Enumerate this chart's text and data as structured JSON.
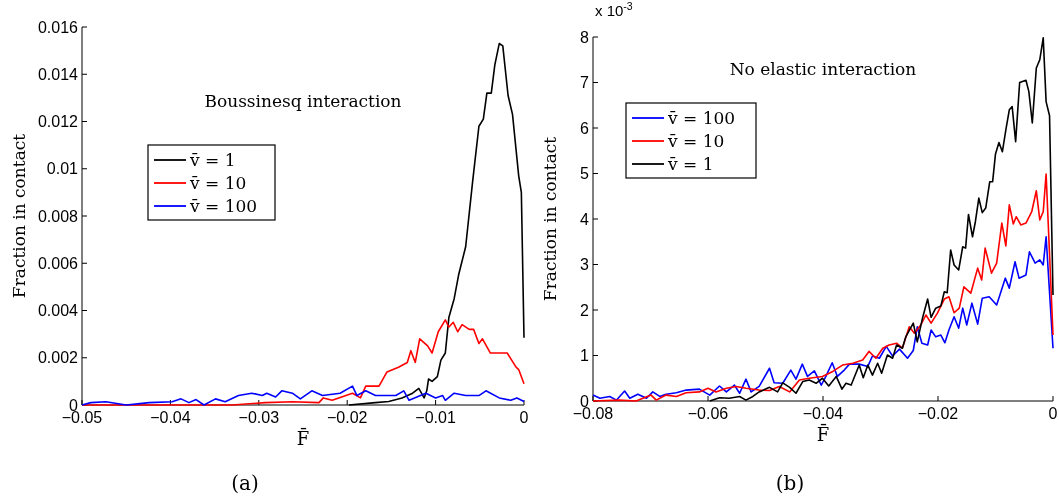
{
  "chart_data": [
    {
      "type": "line",
      "title": "Boussinesq interaction",
      "xlabel": "F̄",
      "ylabel": "Fraction in contact",
      "annotations": [
        "(a)"
      ],
      "xlim": [
        -0.05,
        0
      ],
      "xticks": [
        {
          "value": -0.05,
          "label": "−0.05"
        },
        {
          "value": -0.04,
          "label": "−0.04"
        },
        {
          "value": -0.03,
          "label": "−0.03"
        },
        {
          "value": -0.02,
          "label": "−0.02"
        },
        {
          "value": -0.01,
          "label": "−0.01"
        },
        0
      ],
      "ylim": [
        0,
        0.016
      ],
      "yticks": [
        0,
        0.002,
        0.004,
        0.006,
        0.008,
        0.01,
        0.012,
        0.014,
        0.016
      ],
      "grid": false,
      "legend": "center",
      "marker": "none",
      "line_style": "solid",
      "series": [
        {
          "name": "v̄ = 1",
          "color": "#000000",
          "x": [
            -0.0198,
            -0.0168,
            -0.0153,
            -0.0138,
            -0.0126,
            -0.0119,
            -0.0113,
            -0.011,
            -0.0108,
            -0.0104,
            -0.0098,
            -0.0094,
            -0.0089,
            -0.0085,
            -0.0079,
            -0.0074,
            -0.0066,
            -0.0058,
            -0.0051,
            -0.0046,
            -0.0042,
            -0.0037,
            -0.0033,
            -0.0028,
            -0.0024,
            -0.0018,
            -0.0013,
            -0.0006,
            -0.0003,
            0
          ],
          "values": [
            0,
            0.0001,
            0.00015,
            0.0003,
            0.0005,
            0.0007,
            0.0003,
            0.0006,
            0.0011,
            0.001,
            0.0012,
            0.0019,
            0.0022,
            0.0037,
            0.0045,
            0.0055,
            0.0067,
            0.0095,
            0.0118,
            0.0121,
            0.0132,
            0.0132,
            0.0144,
            0.0153,
            0.0152,
            0.0131,
            0.0123,
            0.0097,
            0.009,
            0.00285
          ]
        },
        {
          "name": "v̄ = 10",
          "color": "#ff0000",
          "x": [
            -0.05,
            -0.033,
            -0.0293,
            -0.0262,
            -0.0232,
            -0.0227,
            -0.0217,
            -0.0194,
            -0.0185,
            -0.0179,
            -0.0164,
            -0.0155,
            -0.0142,
            -0.0132,
            -0.0128,
            -0.0123,
            -0.0118,
            -0.0109,
            -0.0104,
            -0.0097,
            -0.0089,
            -0.0085,
            -0.008,
            -0.0075,
            -0.007,
            -0.0062,
            -0.0057,
            -0.0051,
            -0.0047,
            -0.0038,
            -0.0019,
            -0.0009,
            -0.0006,
            0
          ],
          "values": [
            0,
            0,
            0.0001,
            0.00014,
            0.0001,
            0.0003,
            0.0002,
            0.0005,
            0.0003,
            0.0008,
            0.0008,
            0.0014,
            0.0016,
            0.0018,
            0.0023,
            0.0018,
            0.0028,
            0.0025,
            0.0022,
            0.0031,
            0.0036,
            0.0033,
            0.0035,
            0.0031,
            0.0034,
            0.0032,
            0.0032,
            0.0026,
            0.0028,
            0.0022,
            0.0022,
            0.0016,
            0.0015,
            0.0009
          ]
        },
        {
          "name": "v̄ = 100",
          "color": "#0000ff",
          "x": [
            -0.05,
            -0.049,
            -0.0473,
            -0.045,
            -0.0424,
            -0.0398,
            -0.0388,
            -0.0379,
            -0.0371,
            -0.0362,
            -0.0349,
            -0.0338,
            -0.0323,
            -0.0308,
            -0.0296,
            -0.0291,
            -0.0281,
            -0.0274,
            -0.0262,
            -0.0253,
            -0.024,
            -0.0228,
            -0.0208,
            -0.0194,
            -0.0189,
            -0.0179,
            -0.0168,
            -0.0145,
            -0.0136,
            -0.013,
            -0.0111,
            -0.01,
            -0.0092,
            -0.0089,
            -0.0079,
            -0.0066,
            -0.0051,
            -0.0043,
            -0.0028,
            -0.0015,
            -0.0008,
            0
          ],
          "values": [
            0,
            0.0001,
            0.00014,
            0,
            0.0001,
            0.00014,
            0.00026,
            0.0001,
            0.00023,
            0,
            0.00026,
            0.00014,
            0.0004,
            0.0005,
            0.0004,
            0.0005,
            0.00034,
            0.0006,
            0.0005,
            0.00026,
            0.0006,
            0.0004,
            0.0005,
            0.0008,
            0.0004,
            0.0006,
            0.0004,
            0.0004,
            0.0006,
            0.0002,
            0.0005,
            0.0003,
            0.0004,
            0.0002,
            0.0005,
            0.0004,
            0.0004,
            0.0006,
            0.0003,
            0.0002,
            0.0003,
            0.00015
          ]
        }
      ]
    },
    {
      "type": "line",
      "title": "No elastic interaction",
      "xlabel": "F̄",
      "ylabel": "Fraction in contact",
      "annotations": [
        "x 10$^{-3}$",
        "(b)"
      ],
      "xlim": [
        -0.08,
        0
      ],
      "xticks": [
        {
          "value": -0.08,
          "label": "−0.08"
        },
        {
          "value": -0.06,
          "label": "−0.06"
        },
        {
          "value": -0.04,
          "label": "−0.04"
        },
        {
          "value": -0.02,
          "label": "−0.02"
        },
        0
      ],
      "ylim": [
        0,
        8
      ],
      "yticks": [
        0,
        1,
        2,
        3,
        4,
        5,
        6,
        7,
        8
      ],
      "grid": false,
      "legend": "top left",
      "marker": "none",
      "line_style": "solid",
      "series": [
        {
          "name": "v̄ = 100",
          "color": "#0000ff",
          "x": [
            -0.08,
            -0.0788,
            -0.0771,
            -0.0759,
            -0.0745,
            -0.0736,
            -0.0722,
            -0.0707,
            -0.0696,
            -0.0684,
            -0.0673,
            -0.0655,
            -0.0638,
            -0.0615,
            -0.0597,
            -0.058,
            -0.0568,
            -0.0554,
            -0.0545,
            -0.0534,
            -0.0525,
            -0.0511,
            -0.0493,
            -0.0485,
            -0.047,
            -0.0456,
            -0.0447,
            -0.0436,
            -0.0427,
            -0.0415,
            -0.0403,
            -0.0395,
            -0.0384,
            -0.0375,
            -0.0363,
            -0.0354,
            -0.0337,
            -0.0322,
            -0.0314,
            -0.0302,
            -0.029,
            -0.0279,
            -0.0267,
            -0.0253,
            -0.0243,
            -0.0236,
            -0.0228,
            -0.0218,
            -0.0212,
            -0.0204,
            -0.0195,
            -0.0188,
            -0.0181,
            -0.0172,
            -0.0164,
            -0.0157,
            -0.015,
            -0.0141,
            -0.0131,
            -0.0123,
            -0.0111,
            -0.0098,
            -0.0083,
            -0.0076,
            -0.0066,
            -0.0059,
            -0.0047,
            -0.0041,
            -0.0031,
            -0.0023,
            -0.0017,
            -0.0012,
            0
          ],
          "values": [
            0.13,
            0.06,
            0.1,
            0.02,
            0.22,
            0.06,
            0.15,
            0.06,
            0.2,
            0.1,
            0.15,
            0.18,
            0.24,
            0.26,
            0.13,
            0.33,
            0.2,
            0.35,
            0.17,
            0.48,
            0.2,
            0.32,
            0.72,
            0.4,
            0.39,
            0.68,
            0.48,
            0.81,
            0.54,
            0.66,
            0.35,
            0.54,
            0.84,
            0.54,
            0.68,
            0.81,
            0.81,
            0.76,
            0.99,
            0.94,
            1.2,
            0.99,
            1.14,
            0.94,
            1.11,
            1.63,
            1.27,
            1.23,
            1.56,
            1.41,
            1.45,
            1.28,
            1.56,
            1.85,
            1.6,
            2.04,
            1.67,
            2.15,
            1.69,
            2.26,
            2.29,
            2.11,
            2.7,
            2.48,
            3.06,
            2.7,
            2.77,
            3.28,
            3.03,
            3.1,
            2.99,
            3.61,
            1.16
          ]
        },
        {
          "name": "v̄ = 10",
          "color": "#ff0000",
          "x": [
            -0.08,
            -0.0755,
            -0.0725,
            -0.0699,
            -0.069,
            -0.0673,
            -0.0655,
            -0.0638,
            -0.0615,
            -0.06,
            -0.0586,
            -0.0568,
            -0.0551,
            -0.0534,
            -0.0511,
            -0.0493,
            -0.0476,
            -0.0458,
            -0.0441,
            -0.0424,
            -0.0401,
            -0.0383,
            -0.0366,
            -0.0348,
            -0.0331,
            -0.032,
            -0.0308,
            -0.0296,
            -0.0285,
            -0.0272,
            -0.0262,
            -0.025,
            -0.0241,
            -0.023,
            -0.0221,
            -0.0212,
            -0.0201,
            -0.0189,
            -0.0181,
            -0.0172,
            -0.0163,
            -0.0155,
            -0.0143,
            -0.0131,
            -0.0124,
            -0.0118,
            -0.0107,
            -0.0098,
            -0.0089,
            -0.0082,
            -0.0076,
            -0.0069,
            -0.0064,
            -0.0056,
            -0.0047,
            -0.0037,
            -0.0029,
            -0.0023,
            -0.0017,
            -0.0012,
            0
          ],
          "values": [
            0,
            0.02,
            0,
            0.13,
            0.02,
            0.13,
            0.1,
            0.18,
            0.2,
            0.28,
            0.2,
            0.28,
            0.32,
            0.28,
            0.24,
            0.23,
            0.32,
            0.2,
            0.46,
            0.5,
            0.54,
            0.65,
            0.79,
            0.83,
            0.9,
            1.09,
            0.94,
            1.16,
            1.23,
            1.27,
            1.16,
            1.63,
            1.49,
            1.67,
            1.89,
            1.71,
            1.93,
            2.24,
            2.29,
            1.94,
            2.04,
            2.51,
            2.37,
            2.92,
            2.66,
            3.36,
            2.81,
            3.03,
            3.91,
            3.41,
            4.31,
            3.89,
            4.05,
            3.87,
            3.91,
            4.16,
            4.62,
            3.98,
            4.16,
            4.99,
            1.45
          ]
        },
        {
          "name": "v̄ = 1",
          "color": "#000000",
          "x": [
            -0.0597,
            -0.058,
            -0.0563,
            -0.0545,
            -0.0534,
            -0.0522,
            -0.0511,
            -0.0493,
            -0.0479,
            -0.047,
            -0.0458,
            -0.0447,
            -0.0435,
            -0.0424,
            -0.0412,
            -0.0401,
            -0.039,
            -0.0377,
            -0.0367,
            -0.036,
            -0.0351,
            -0.0337,
            -0.033,
            -0.0322,
            -0.0314,
            -0.0305,
            -0.0298,
            -0.0288,
            -0.0279,
            -0.0272,
            -0.0262,
            -0.0256,
            -0.0243,
            -0.0236,
            -0.0227,
            -0.0218,
            -0.0212,
            -0.0204,
            -0.0195,
            -0.0189,
            -0.0184,
            -0.0178,
            -0.0172,
            -0.0164,
            -0.0157,
            -0.0152,
            -0.0147,
            -0.014,
            -0.0135,
            -0.0129,
            -0.0123,
            -0.0117,
            -0.011,
            -0.0105,
            -0.01,
            -0.0094,
            -0.0088,
            -0.0082,
            -0.0076,
            -0.0071,
            -0.0065,
            -0.0058,
            -0.0047,
            -0.0042,
            -0.0036,
            -0.0029,
            -0.0023,
            -0.0017,
            -0.0012,
            -0.0006,
            0
          ],
          "values": [
            0,
            0.07,
            0.06,
            0.1,
            0.02,
            0.1,
            0.2,
            0.3,
            0.2,
            0.4,
            0.3,
            0.17,
            0.43,
            0.46,
            0.39,
            0.5,
            0.33,
            0.54,
            0.26,
            0.39,
            0.35,
            0.79,
            0.51,
            0.79,
            0.57,
            0.83,
            0.61,
            1.01,
            0.94,
            1.23,
            1.16,
            1.41,
            1.71,
            1.3,
            1.82,
            2.24,
            1.84,
            2.04,
            2.09,
            2.4,
            2.38,
            3.32,
            2.99,
            2.88,
            3.39,
            3.36,
            4.1,
            3.61,
            3.94,
            4.46,
            4.14,
            4.24,
            4.82,
            4.82,
            5.43,
            5.68,
            5.48,
            5.96,
            6.4,
            6.47,
            5.7,
            7.0,
            7.05,
            6.8,
            6.11,
            7.32,
            7.5,
            7.98,
            6.58,
            6.27,
            2.33
          ]
        }
      ]
    }
  ]
}
